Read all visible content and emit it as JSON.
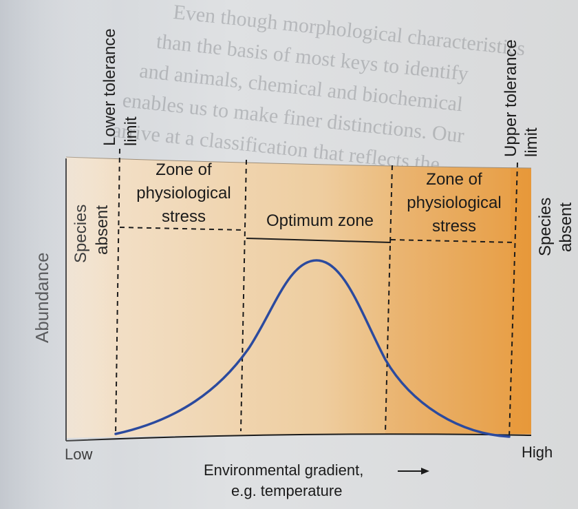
{
  "background_text_lines": [
    "Even though morphological characteristics",
    "than the basis of most keys to identify",
    "and animals, chemical and biochemical",
    "enables us to make finer distinctions. Our",
    "arrive at a classification that reflects the"
  ],
  "labels": {
    "lower_tolerance_line1": "Lower tolerance",
    "lower_tolerance_line2": "limit",
    "upper_tolerance_line1": "Upper tolerance",
    "upper_tolerance_line2": "limit",
    "left_absent_line1": "Species",
    "left_absent_line2": "absent",
    "right_absent_line1": "Species",
    "right_absent_line2": "absent",
    "stress_left_line1": "Zone of",
    "stress_left_line2": "physiological",
    "stress_left_line3": "stress",
    "optimum": "Optimum zone",
    "stress_right_line1": "Zone of",
    "stress_right_line2": "physiological",
    "stress_right_line3": "stress",
    "y_axis": "Abundance",
    "x_low": "Low",
    "x_high": "High",
    "x_axis_line1": "Environmental gradient,",
    "x_axis_line2": "e.g. temperature"
  },
  "colors": {
    "curve": "#2b4a9e",
    "gradient_start": "#f3e3cf",
    "gradient_mid": "#eecd9f",
    "gradient_end": "#e79a3a",
    "high_band": "#e8973a",
    "text": "#1b1b1b"
  }
}
